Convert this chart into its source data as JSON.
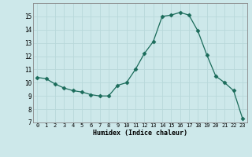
{
  "x": [
    0,
    1,
    2,
    3,
    4,
    5,
    6,
    7,
    8,
    9,
    10,
    11,
    12,
    13,
    14,
    15,
    16,
    17,
    18,
    19,
    20,
    21,
    22,
    23
  ],
  "y": [
    10.4,
    10.3,
    9.9,
    9.6,
    9.4,
    9.3,
    9.1,
    9.0,
    9.0,
    9.8,
    10.0,
    11.0,
    12.2,
    13.1,
    15.0,
    15.1,
    15.3,
    15.1,
    13.9,
    12.1,
    10.5,
    10.0,
    9.4,
    7.3
  ],
  "xlim": [
    -0.5,
    23.5
  ],
  "ylim": [
    7,
    16
  ],
  "xlabel": "Humidex (Indice chaleur)",
  "xticks": [
    0,
    1,
    2,
    3,
    4,
    5,
    6,
    7,
    8,
    9,
    10,
    11,
    12,
    13,
    14,
    15,
    16,
    17,
    18,
    19,
    20,
    21,
    22,
    23
  ],
  "yticks": [
    7,
    8,
    9,
    10,
    11,
    12,
    13,
    14,
    15
  ],
  "line_color": "#1a6b5a",
  "marker": "D",
  "marker_size": 2.5,
  "bg_color": "#cde8ea",
  "grid_color": "#b8d8da",
  "spine_color": "#888888"
}
